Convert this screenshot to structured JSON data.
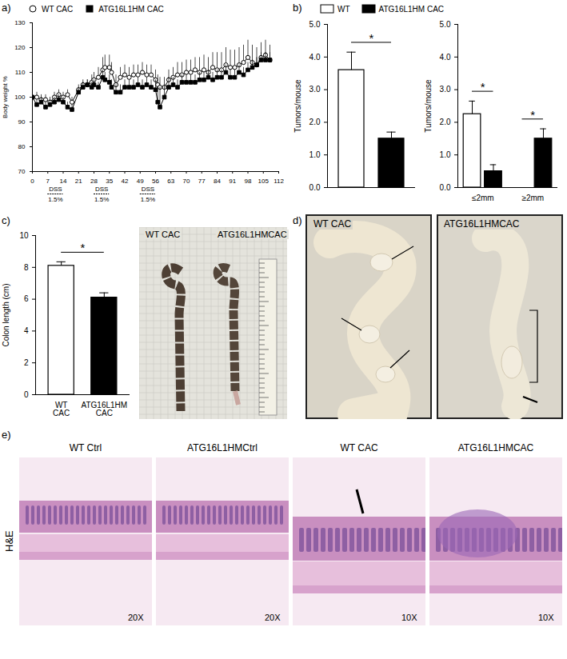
{
  "chart_data": [
    {
      "panel": "a)",
      "type": "line",
      "y_label": "Body weight %",
      "legend": "top",
      "x": [
        0,
        2,
        4,
        6,
        8,
        10,
        12,
        14,
        16,
        18,
        21,
        23,
        25,
        27,
        28,
        30,
        32,
        33,
        35,
        36,
        38,
        40,
        42,
        44,
        46,
        48,
        50,
        52,
        54,
        56,
        57,
        58,
        60,
        62,
        64,
        66,
        68,
        70,
        72,
        74,
        76,
        78,
        80,
        82,
        84,
        86,
        88,
        90,
        92,
        94,
        96,
        98,
        100,
        102,
        104,
        106,
        108
      ],
      "xlim": [
        0,
        112
      ],
      "xticks": [
        0,
        7,
        14,
        21,
        28,
        35,
        42,
        49,
        56,
        63,
        70,
        77,
        84,
        91,
        98,
        105,
        112
      ],
      "ylim": [
        70,
        130
      ],
      "yticks": [
        70,
        80,
        90,
        100,
        110,
        120,
        130
      ],
      "series": [
        {
          "name": "WT CAC",
          "color": "#000000",
          "marker": "open_circle",
          "values": [
            100,
            100,
            99,
            99,
            98,
            100,
            101,
            100,
            101,
            98,
            103,
            105,
            105,
            106,
            107,
            108,
            111,
            112,
            112,
            110,
            105,
            108,
            109,
            108,
            109,
            109,
            110,
            109,
            109,
            107,
            105,
            104,
            104,
            107,
            108,
            109,
            109,
            110,
            110,
            111,
            110,
            111,
            110,
            112,
            111,
            111,
            113,
            112,
            112,
            113,
            114,
            116,
            114,
            113,
            116,
            117,
            115
          ],
          "errors": [
            2,
            2,
            2,
            2,
            2,
            2,
            2,
            2,
            2,
            2,
            2,
            2,
            2,
            3,
            3,
            4,
            5,
            5,
            5,
            4,
            4,
            4,
            4,
            4,
            4,
            4,
            4,
            4,
            4,
            4,
            4,
            4,
            4,
            4,
            4,
            5,
            5,
            5,
            5,
            5,
            6,
            6,
            6,
            6,
            7,
            7,
            7,
            7,
            7,
            7,
            7,
            7,
            7,
            7,
            6,
            6,
            6
          ]
        },
        {
          "name": "ATG16L1HM CAC",
          "color": "#000000",
          "marker": "filled_square",
          "values": [
            100,
            97,
            98,
            96,
            97,
            98,
            99,
            98,
            96,
            95,
            102,
            104,
            105,
            104,
            105,
            104,
            108,
            107,
            106,
            104,
            102,
            102,
            104,
            104,
            104,
            105,
            104,
            105,
            104,
            103,
            98,
            96,
            100,
            104,
            105,
            104,
            106,
            106,
            106,
            106,
            107,
            107,
            108,
            107,
            108,
            108,
            110,
            108,
            108,
            110,
            109,
            111,
            112,
            113,
            115,
            115,
            115
          ],
          "errors": [
            2,
            2,
            2,
            2,
            2,
            2,
            2,
            2,
            2,
            2,
            2,
            2,
            2,
            2,
            2,
            2,
            3,
            3,
            3,
            3,
            3,
            3,
            3,
            3,
            3,
            3,
            3,
            3,
            3,
            4,
            6,
            8,
            5,
            4,
            3,
            3,
            3,
            3,
            3,
            3,
            3,
            3,
            3,
            3,
            3,
            3,
            3,
            3,
            3,
            3,
            3,
            3,
            3,
            3,
            3,
            3,
            3
          ]
        }
      ],
      "annotations": [
        {
          "text": "DSS",
          "subtext": "1.5%",
          "x_start": 7,
          "x_end": 14
        },
        {
          "text": "DSS",
          "subtext": "1.5%",
          "x_start": 28,
          "x_end": 35
        },
        {
          "text": "DSS",
          "subtext": "1.5%",
          "x_start": 49,
          "x_end": 56
        }
      ]
    },
    {
      "panel": "b)",
      "type": "bar",
      "y_label": "Tumors/mouse",
      "legend": "top",
      "tick_labels": "y",
      "ylim": [
        0,
        5
      ],
      "yticks": [
        0,
        1,
        2,
        3,
        4,
        5
      ],
      "series": [
        {
          "name": "WT",
          "color": "#ffffff",
          "values": [
            3.6
          ],
          "errors": [
            0.55
          ]
        },
        {
          "name": "ATG16L1HM CAC",
          "color": "#000000",
          "values": [
            1.5
          ],
          "errors": [
            0.2
          ]
        }
      ],
      "annotations": [
        {
          "text": "*"
        }
      ]
    },
    {
      "type": "bar",
      "y_label": "Tumors/mouse",
      "categories": [
        "≤2mm",
        "≥2mm"
      ],
      "ylim": [
        0,
        5
      ],
      "yticks": [
        0,
        1,
        2,
        3,
        4,
        5
      ],
      "series": [
        {
          "color": "#ffffff",
          "values": [
            2.25,
            0
          ],
          "errors": [
            0.4,
            0
          ]
        },
        {
          "color": "#000000",
          "values": [
            0.5,
            1.5
          ],
          "errors": [
            0.2,
            0.3
          ]
        }
      ],
      "annotations": [
        {
          "text": "*",
          "category": "≤2mm"
        },
        {
          "text": "*",
          "category": "≥2mm"
        }
      ]
    },
    {
      "panel": "c)",
      "type": "bar",
      "y_label": "Colon length (cm)",
      "categories": [
        "WT CAC",
        "ATG16L1HM CAC"
      ],
      "values": [
        8.1,
        6.1
      ],
      "errors": [
        0.25,
        0.3
      ],
      "colors": [
        "#ffffff",
        "#000000"
      ],
      "ylim": [
        0,
        10
      ],
      "yticks": [
        0,
        2,
        4,
        6,
        8,
        10
      ],
      "annotations": [
        {
          "text": "*"
        }
      ]
    }
  ],
  "images": [
    {
      "panel": "c)",
      "labels": [
        "WT CAC",
        "ATG16L1HMCAC"
      ]
    },
    {
      "panel": "d)",
      "labels": [
        "WT CAC",
        "ATG16L1HMCAC"
      ]
    },
    {
      "panel": "e)",
      "row_label": "H&E",
      "items": [
        {
          "title": "WT Ctrl",
          "magnification": "20X"
        },
        {
          "title": "ATG16L1HMCtrl",
          "magnification": "20X"
        },
        {
          "title": "WT CAC",
          "magnification": "10X"
        },
        {
          "title": "ATG16L1HMCAC",
          "magnification": "10X"
        }
      ]
    }
  ]
}
